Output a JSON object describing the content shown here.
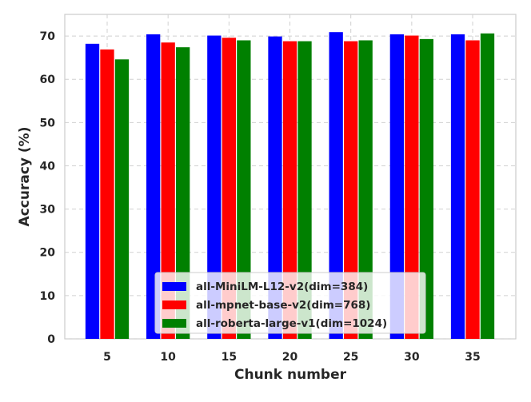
{
  "chart_data": {
    "type": "bar",
    "title": "",
    "xlabel": "Chunk number",
    "ylabel": "Accuracy (%)",
    "categories": [
      "5",
      "10",
      "15",
      "20",
      "25",
      "30",
      "35"
    ],
    "ylim": [
      0,
      75
    ],
    "yticks": [
      "0",
      "10",
      "20",
      "30",
      "40",
      "50",
      "60",
      "70"
    ],
    "grid": true,
    "legend_position": "bottom-center",
    "series": [
      {
        "name": "all-MiniLM-L12-v2(dim=384)",
        "color": "#0000ff",
        "values": [
          68.2,
          70.4,
          70.1,
          69.9,
          70.9,
          70.4,
          70.4
        ]
      },
      {
        "name": "all-mpnet-base-v2(dim=768)",
        "color": "#ff0000",
        "values": [
          66.9,
          68.5,
          69.6,
          68.8,
          68.8,
          70.1,
          69.0
        ]
      },
      {
        "name": "all-roberta-large-v1(dim=1024)",
        "color": "#008000",
        "values": [
          64.6,
          67.4,
          69.0,
          68.8,
          69.0,
          69.3,
          70.6
        ]
      }
    ]
  }
}
